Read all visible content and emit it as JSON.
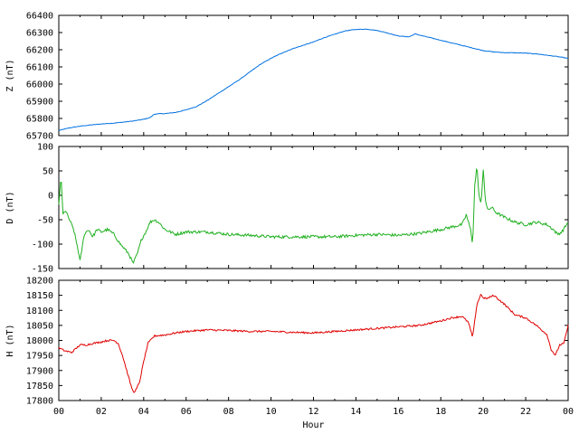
{
  "chart_data": [
    {
      "type": "line",
      "ylabel": "Z (nT)",
      "ylim": [
        65700,
        66400
      ],
      "yticks": [
        65700,
        65800,
        65900,
        66000,
        66100,
        66200,
        66300,
        66400
      ],
      "xlim": [
        0,
        24
      ],
      "color": "#0070e0",
      "noise": 1.5,
      "series": [
        {
          "x": [
            0,
            0.5,
            1,
            1.5,
            2,
            2.5,
            3,
            3.5,
            4,
            4.3,
            4.5,
            4.8,
            5,
            5.5,
            6,
            6.5,
            7,
            7.5,
            8,
            8.5,
            9,
            9.5,
            10,
            10.5,
            11,
            11.5,
            12,
            12.5,
            13,
            13.5,
            14,
            14.5,
            15,
            15.5,
            16,
            16.5,
            16.8,
            17,
            17.5,
            18,
            18.5,
            19,
            19.5,
            20,
            20.5,
            21,
            21.5,
            22,
            22.5,
            23,
            23.5,
            24
          ],
          "y": [
            65730,
            65745,
            65755,
            65762,
            65768,
            65772,
            65778,
            65785,
            65795,
            65805,
            65825,
            65828,
            65828,
            65835,
            65850,
            65870,
            65905,
            65945,
            65985,
            66025,
            66070,
            66115,
            66150,
            66180,
            66205,
            66225,
            66245,
            66270,
            66290,
            66310,
            66318,
            66320,
            66312,
            66297,
            66280,
            66275,
            66292,
            66285,
            66270,
            66255,
            66240,
            66225,
            66210,
            66195,
            66187,
            66183,
            66182,
            66180,
            66176,
            66168,
            66160,
            66150
          ]
        }
      ]
    },
    {
      "type": "line",
      "ylabel": "D (nT)",
      "ylim": [
        -150,
        100
      ],
      "yticks": [
        -150,
        -100,
        -50,
        0,
        50,
        100
      ],
      "xlim": [
        0,
        24
      ],
      "color": "#20b020",
      "noise": 3,
      "series": [
        {
          "x": [
            0,
            0.1,
            0.2,
            0.3,
            0.5,
            0.7,
            0.9,
            1.0,
            1.2,
            1.4,
            1.6,
            1.8,
            2.0,
            2.3,
            2.6,
            2.9,
            3.1,
            3.3,
            3.5,
            3.7,
            3.9,
            4.1,
            4.3,
            4.5,
            4.7,
            5.0,
            5.5,
            6,
            7,
            8,
            9,
            10,
            11,
            12,
            13,
            14,
            15,
            16,
            17,
            18,
            18.5,
            19,
            19.2,
            19.4,
            19.5,
            19.6,
            19.7,
            19.8,
            19.9,
            20.0,
            20.1,
            20.2,
            20.4,
            20.6,
            21,
            21.5,
            22,
            22.5,
            23,
            23.3,
            23.5,
            23.7,
            24
          ],
          "y": [
            -20,
            40,
            -40,
            -30,
            -50,
            -70,
            -110,
            -135,
            -80,
            -70,
            -85,
            -70,
            -75,
            -70,
            -80,
            -100,
            -110,
            -120,
            -140,
            -120,
            -90,
            -75,
            -55,
            -50,
            -55,
            -70,
            -80,
            -75,
            -75,
            -80,
            -82,
            -85,
            -85,
            -85,
            -85,
            -82,
            -80,
            -82,
            -78,
            -70,
            -65,
            -60,
            -40,
            -70,
            -100,
            20,
            60,
            0,
            -20,
            55,
            -10,
            -30,
            -25,
            -35,
            -45,
            -55,
            -60,
            -55,
            -60,
            -70,
            -80,
            -75,
            -55
          ]
        }
      ]
    },
    {
      "type": "line",
      "ylabel": "H (nT)",
      "ylim": [
        17800,
        18200
      ],
      "yticks": [
        17800,
        17850,
        17900,
        17950,
        18000,
        18050,
        18100,
        18150,
        18200
      ],
      "xlim": [
        0,
        24
      ],
      "xticks": [
        "00",
        "02",
        "04",
        "06",
        "08",
        "10",
        "12",
        "14",
        "16",
        "18",
        "20",
        "22",
        "00"
      ],
      "xlabel": "Hour",
      "color": "#e00000",
      "noise": 3,
      "series": [
        {
          "x": [
            0,
            0.3,
            0.6,
            1,
            1.3,
            1.6,
            2,
            2.3,
            2.6,
            2.8,
            3.0,
            3.2,
            3.4,
            3.5,
            3.6,
            3.8,
            4.0,
            4.2,
            4.5,
            5,
            5.5,
            6,
            7,
            8,
            9,
            10,
            11,
            12,
            13,
            14,
            15,
            16,
            17,
            18,
            18.5,
            19,
            19.3,
            19.5,
            19.7,
            19.9,
            20.0,
            20.2,
            20.5,
            21,
            21.5,
            22,
            22.5,
            23,
            23.2,
            23.4,
            23.6,
            23.8,
            24
          ],
          "y": [
            17975,
            17965,
            17960,
            17985,
            17985,
            17990,
            17995,
            18000,
            18000,
            17990,
            17950,
            17900,
            17850,
            17830,
            17830,
            17860,
            17930,
            17990,
            18015,
            18018,
            18025,
            18030,
            18035,
            18033,
            18030,
            18030,
            18027,
            18025,
            18030,
            18035,
            18040,
            18045,
            18050,
            18065,
            18075,
            18080,
            18060,
            18010,
            18120,
            18155,
            18140,
            18140,
            18150,
            18120,
            18085,
            18075,
            18050,
            18020,
            17970,
            17950,
            17985,
            17990,
            18050
          ]
        }
      ]
    }
  ]
}
